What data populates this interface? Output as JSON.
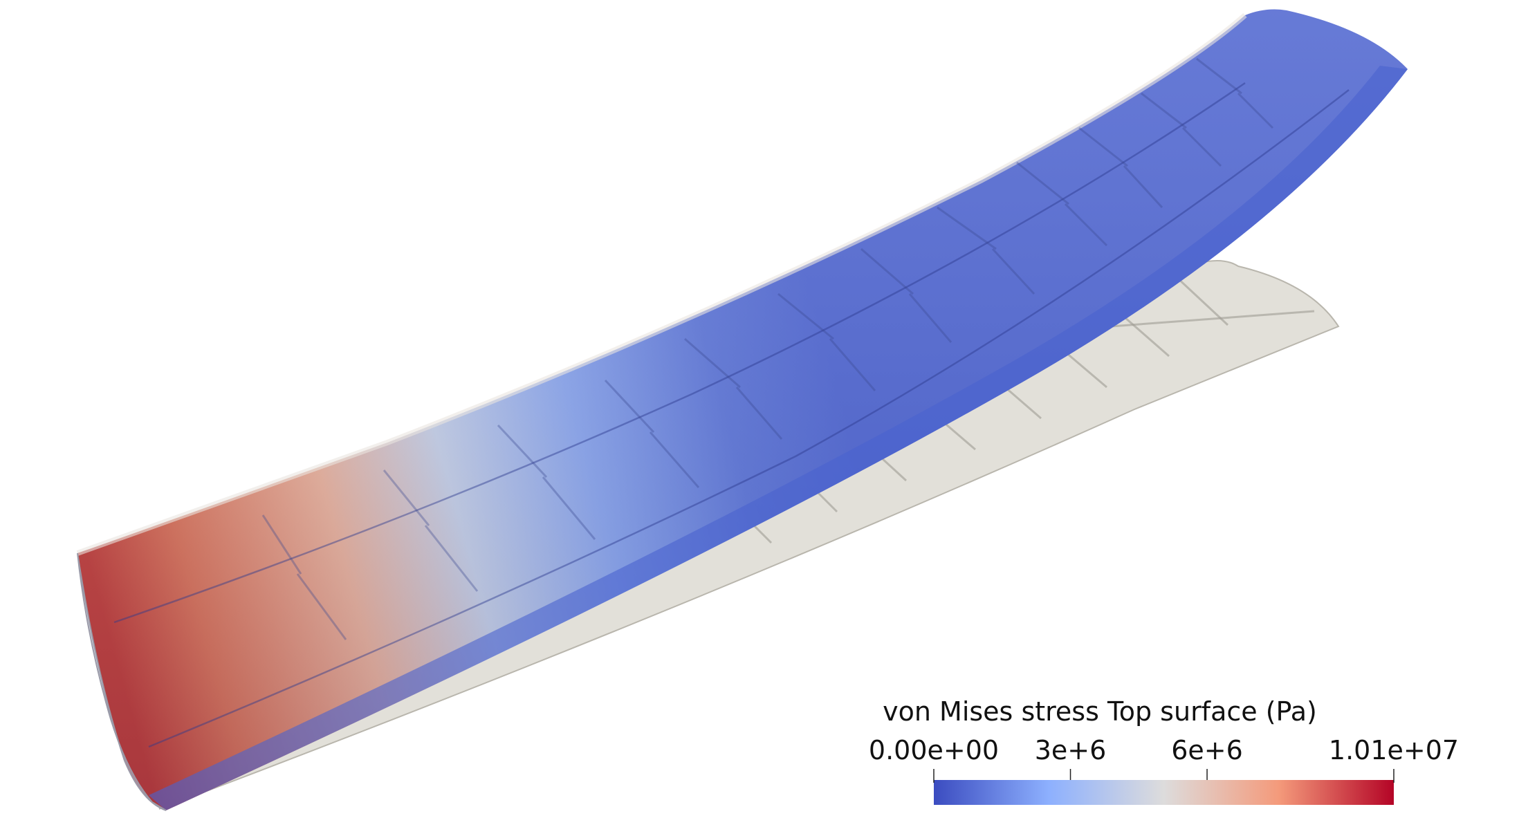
{
  "colorbar": {
    "title": "von Mises stress Top surface (Pa)",
    "min_label": "0.00e+00",
    "max_label": "1.01e+07",
    "min": 0,
    "max": 10100000,
    "ticks": [
      {
        "value": 3000000,
        "label": "3e+6"
      },
      {
        "value": 6000000,
        "label": "6e+6"
      }
    ],
    "colormap": [
      "#3b4cc0",
      "#8db0fe",
      "#dddcdc",
      "#f49a7b",
      "#b40426"
    ]
  },
  "colors": {
    "undeformed_wing": "#d8d5cc",
    "background": "#ffffff"
  }
}
